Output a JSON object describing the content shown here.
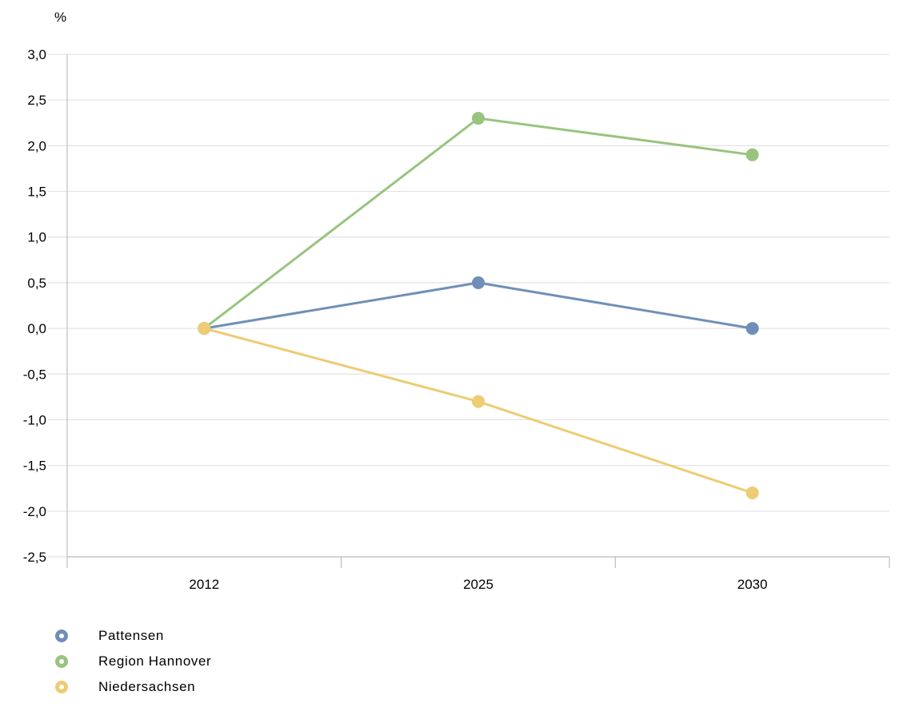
{
  "chart_data": {
    "type": "line",
    "title": "",
    "ylabel": "%",
    "xlabel": "",
    "categories": [
      "2012",
      "2025",
      "2030"
    ],
    "ylim": [
      -2.5,
      3.0
    ],
    "yticks": [
      3.0,
      2.5,
      2.0,
      1.5,
      1.0,
      0.5,
      0.0,
      -0.5,
      -1.0,
      -1.5,
      -2.0,
      -2.5
    ],
    "ytick_labels": [
      "3,0",
      "2,5",
      "2,0",
      "1,5",
      "1,0",
      "0,5",
      "0,0",
      "-0,5",
      "-1,0",
      "-1,5",
      "-2,0",
      "-2,5"
    ],
    "grid": true,
    "legend_position": "bottom-left",
    "series": [
      {
        "name": "Pattensen",
        "color": "#6f8fb8",
        "values": [
          0.0,
          0.5,
          0.0
        ]
      },
      {
        "name": "Region Hannover",
        "color": "#98c47f",
        "values": [
          0.0,
          2.3,
          1.9
        ]
      },
      {
        "name": "Niedersachsen",
        "color": "#eecb74",
        "values": [
          0.0,
          -0.8,
          -1.8
        ]
      }
    ]
  }
}
